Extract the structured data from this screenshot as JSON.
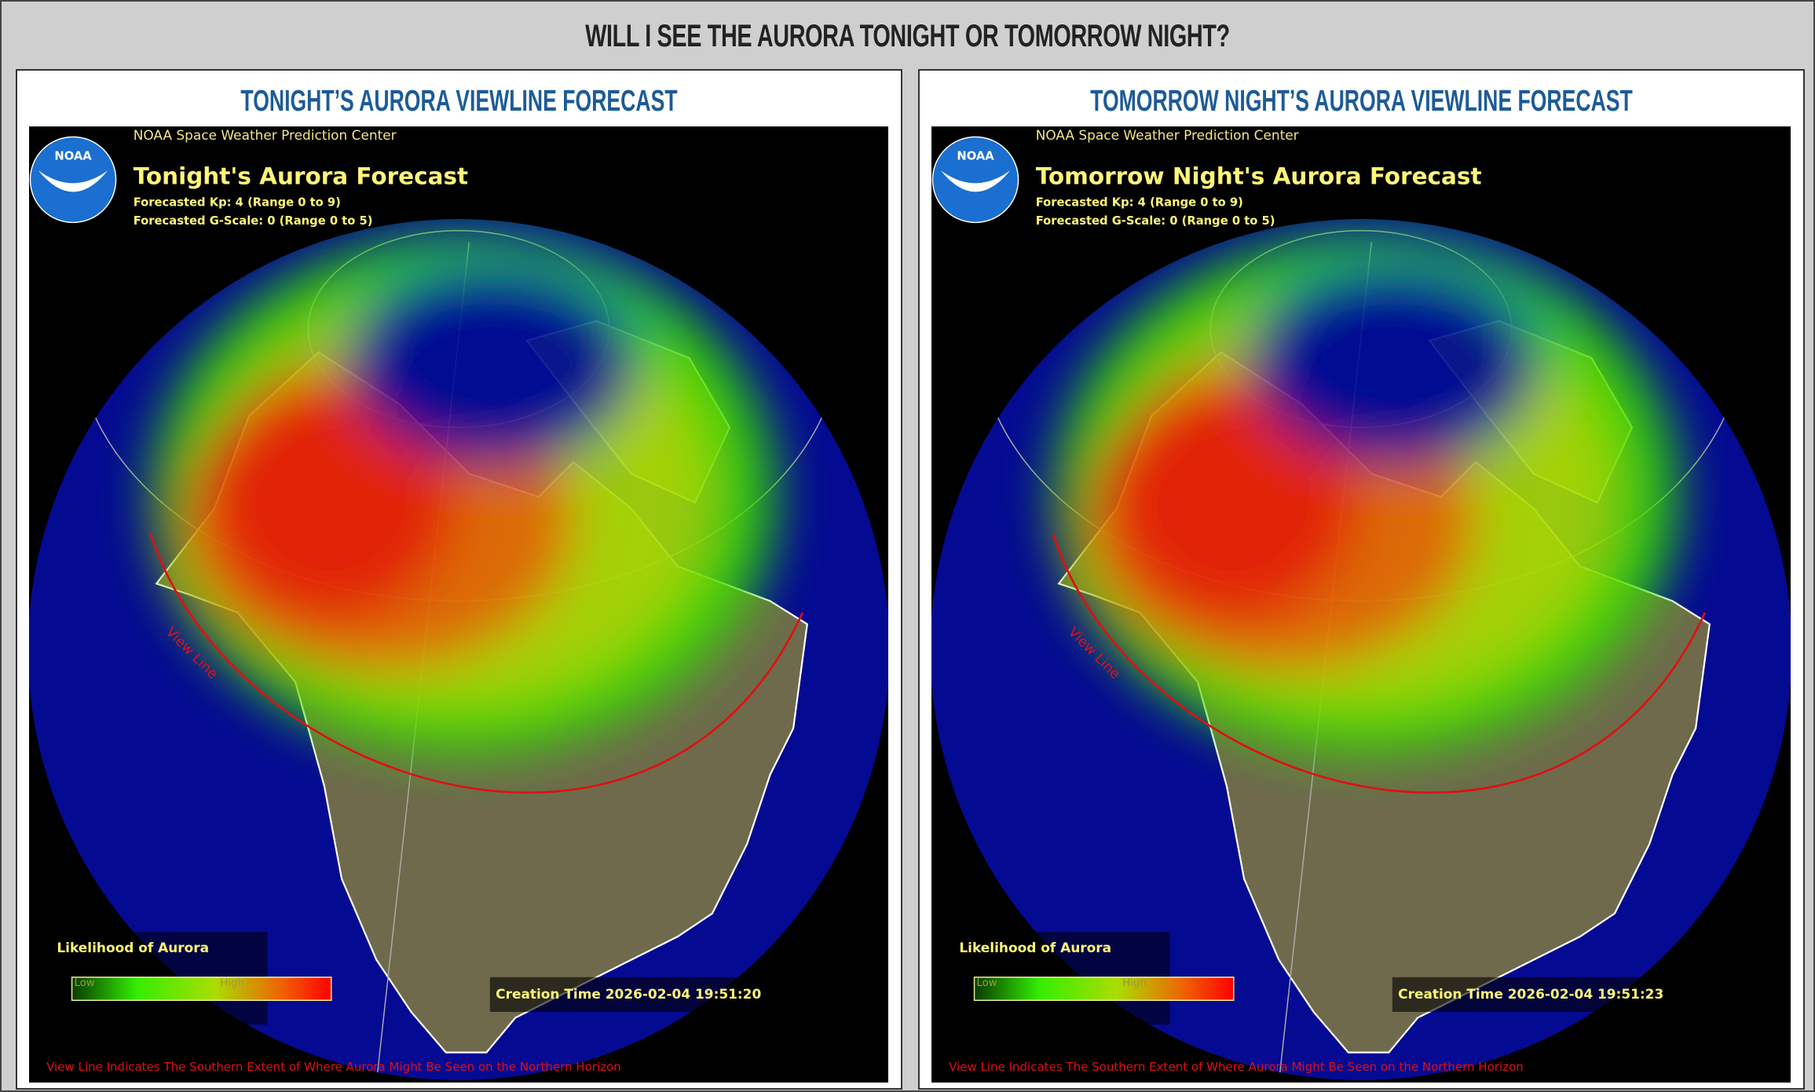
{
  "header": {
    "title": "WILL I SEE THE AURORA TONIGHT OR TOMORROW NIGHT?"
  },
  "panels": [
    {
      "heading": "TONIGHT’S AURORA VIEWLINE FORECAST",
      "map": {
        "source": "NOAA Space Weather Prediction Center",
        "logo": "NOAA",
        "title": "Tonight's Aurora Forecast",
        "kp": "Forecasted Kp: 4 (Range 0 to 9)",
        "g_scale": "Forecasted G-Scale: 0 (Range 0 to 5)",
        "view_line_label": "View Line",
        "legend_title": "Likelihood of Aurora",
        "legend_low": "Low",
        "legend_high": "High",
        "creation_time": "Creation Time 2026-02-04 19:51:20",
        "footnote": "View Line Indicates The Southern Extent of Where Aurora Might Be Seen on the Northern Horizon"
      }
    },
    {
      "heading": "TOMORROW NIGHT’S AURORA VIEWLINE FORECAST",
      "map": {
        "source": "NOAA Space Weather Prediction Center",
        "logo": "NOAA",
        "title": "Tomorrow Night's Aurora Forecast",
        "kp": "Forecasted Kp: 4 (Range 0 to 9)",
        "g_scale": "Forecasted G-Scale: 0 (Range 0 to 5)",
        "view_line_label": "View Line",
        "legend_title": "Likelihood of Aurora",
        "legend_low": "Low",
        "legend_high": "High",
        "creation_time": "Creation Time 2026-02-04 19:51:23",
        "footnote": "View Line Indicates The Southern Extent of Where Aurora Might Be Seen on the Northern Horizon"
      }
    }
  ]
}
